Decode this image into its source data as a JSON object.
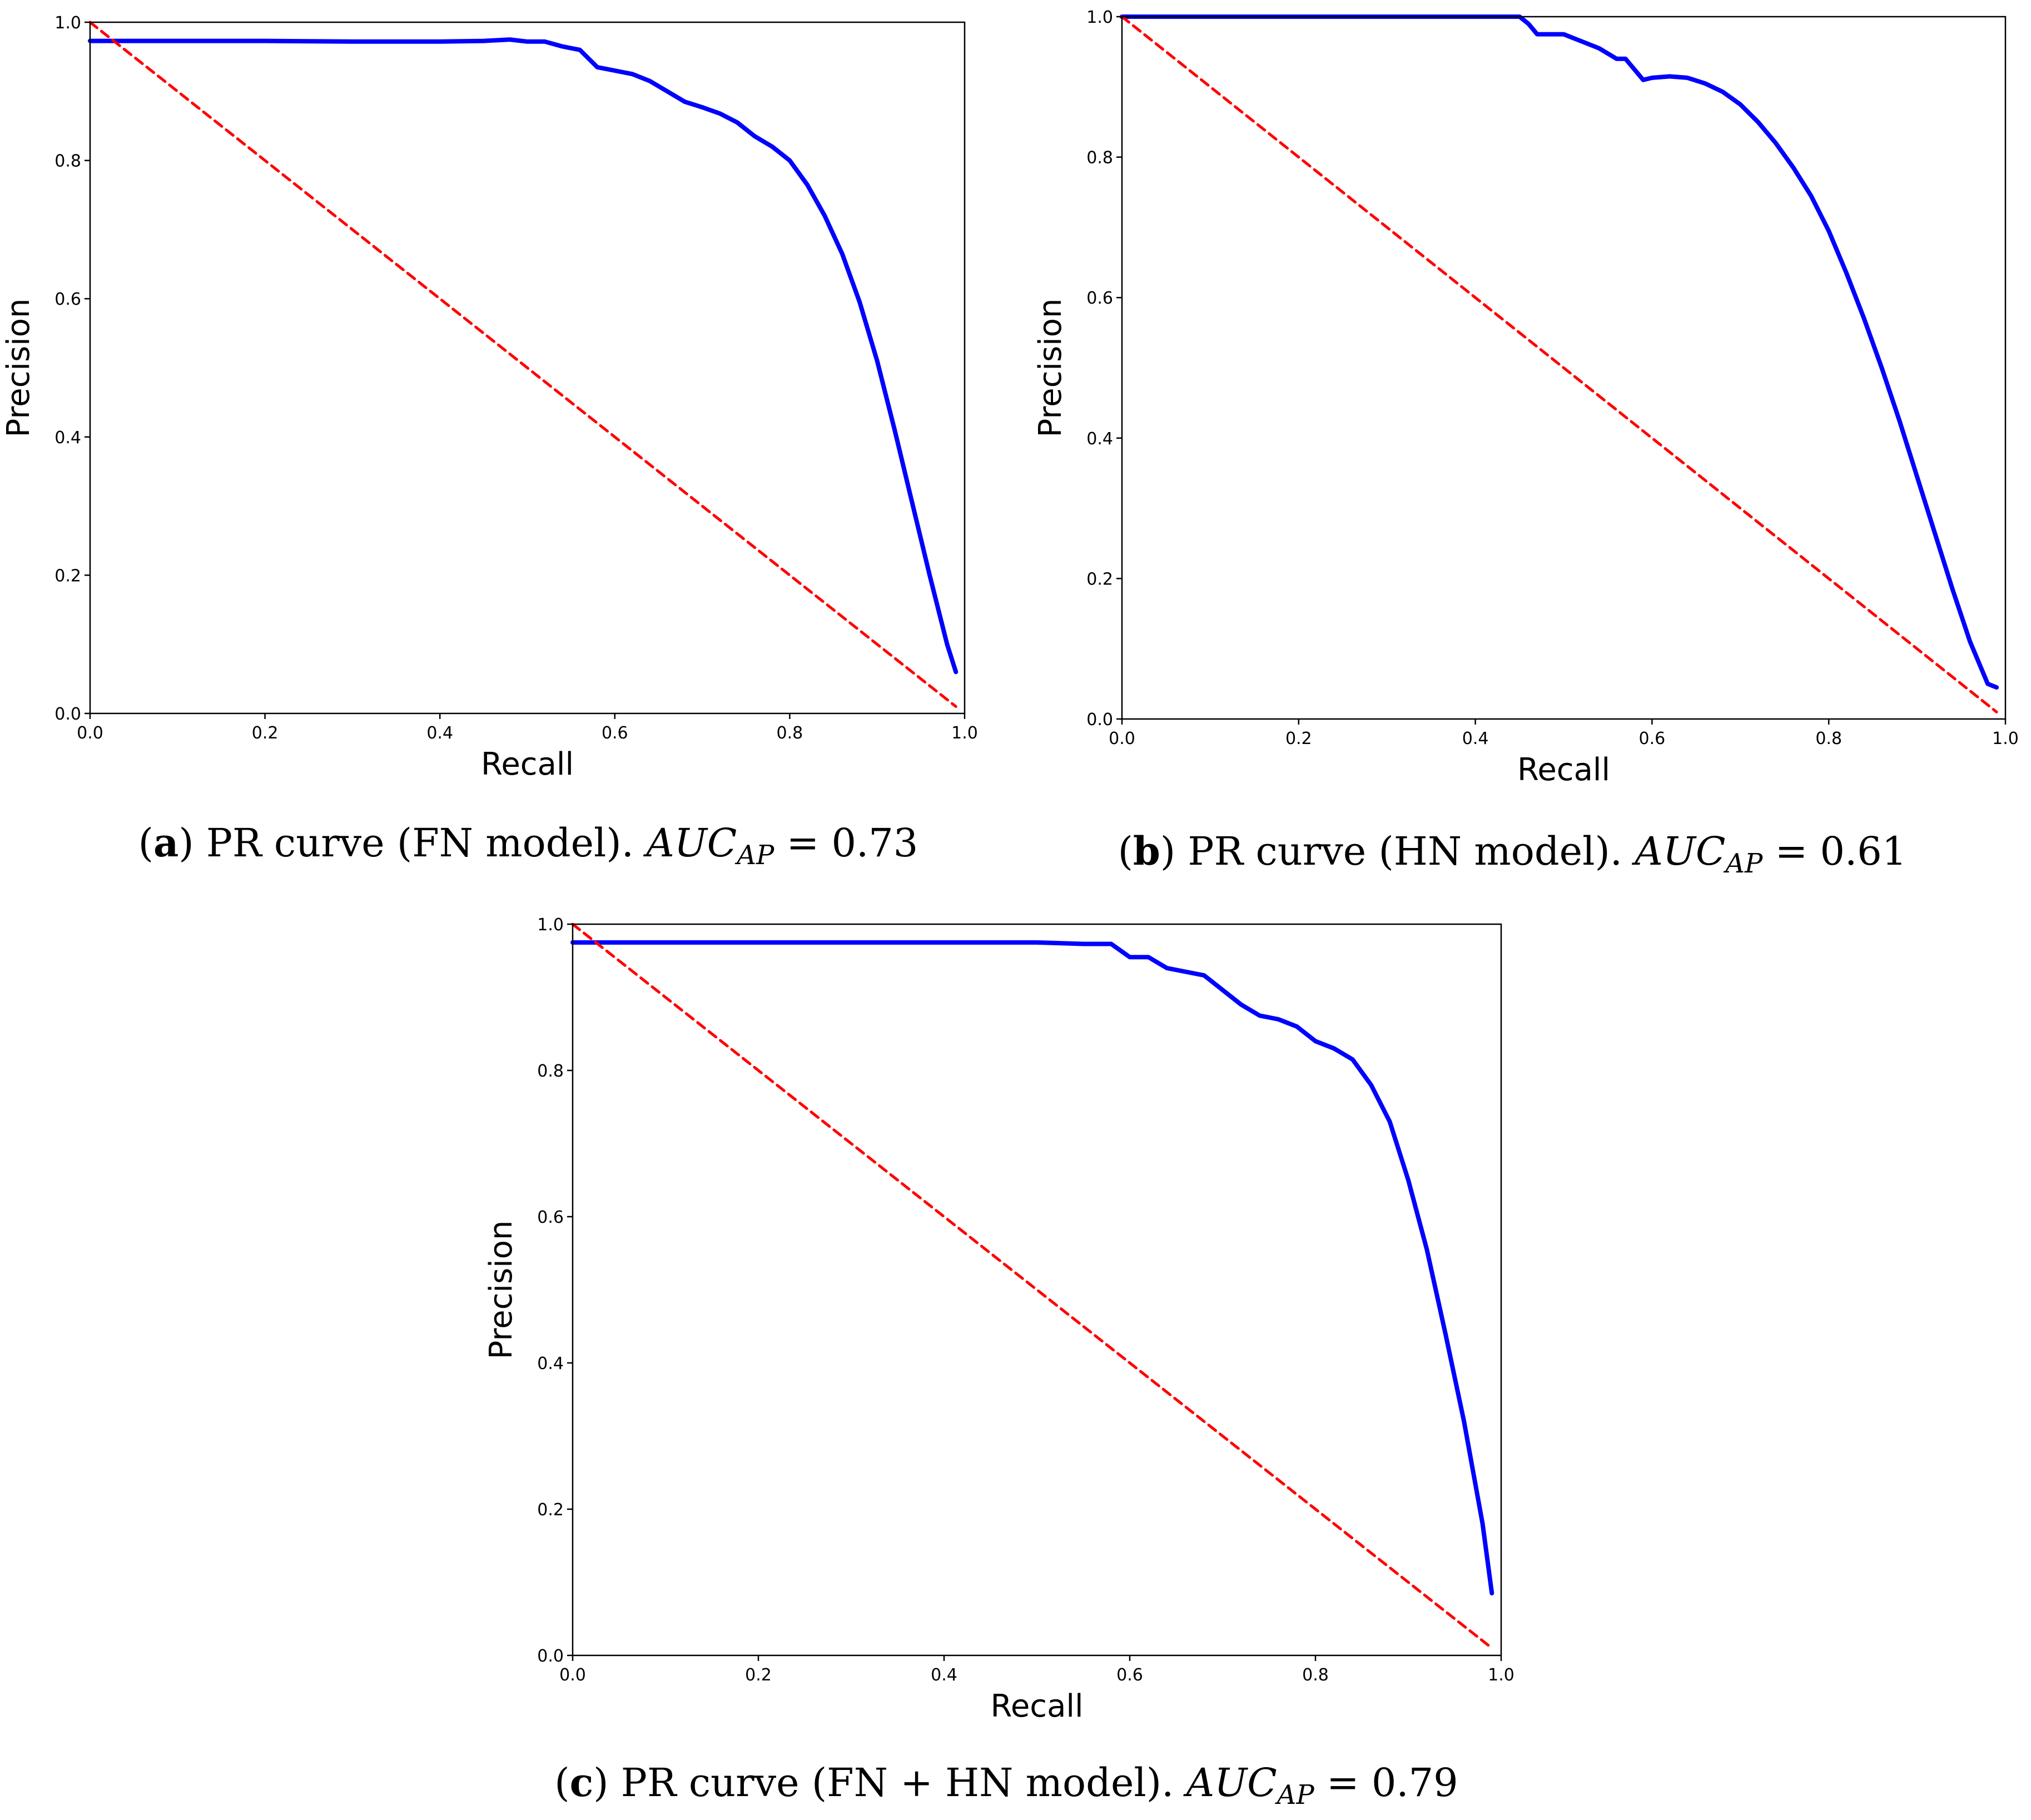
{
  "chart_data": [
    {
      "id": "a",
      "type": "line",
      "xlabel": "Recall",
      "ylabel": "Precision",
      "xlim": [
        0,
        1
      ],
      "ylim": [
        0,
        1
      ],
      "ticks": [
        "0.0",
        "0.2",
        "0.4",
        "0.6",
        "0.8",
        "1.0"
      ],
      "caption": {
        "label": "a",
        "text": "PR curve (FN model).",
        "metric": "AUC",
        "sub": "AP",
        "value": "0.73"
      },
      "series": [
        {
          "name": "pr-curve",
          "color": "#0000ff",
          "style": "solid",
          "x": [
            0,
            0.1,
            0.2,
            0.3,
            0.4,
            0.45,
            0.48,
            0.5,
            0.52,
            0.54,
            0.56,
            0.58,
            0.6,
            0.62,
            0.64,
            0.66,
            0.68,
            0.7,
            0.72,
            0.74,
            0.76,
            0.78,
            0.8,
            0.82,
            0.84,
            0.86,
            0.88,
            0.9,
            0.92,
            0.94,
            0.96,
            0.98,
            0.99
          ],
          "y": [
            0.973,
            0.973,
            0.973,
            0.972,
            0.972,
            0.973,
            0.975,
            0.972,
            0.972,
            0.965,
            0.96,
            0.935,
            0.93,
            0.925,
            0.915,
            0.9,
            0.885,
            0.877,
            0.868,
            0.855,
            0.835,
            0.82,
            0.8,
            0.765,
            0.72,
            0.665,
            0.595,
            0.51,
            0.41,
            0.305,
            0.2,
            0.1,
            0.06
          ]
        },
        {
          "name": "baseline",
          "color": "#ff0000",
          "style": "dashed",
          "x": [
            0,
            0.99
          ],
          "y": [
            1.0,
            0.01
          ]
        }
      ]
    },
    {
      "id": "b",
      "type": "line",
      "xlabel": "Recall",
      "ylabel": "Precision",
      "xlim": [
        0,
        1
      ],
      "ylim": [
        0,
        1
      ],
      "ticks": [
        "0.0",
        "0.2",
        "0.4",
        "0.6",
        "0.8",
        "1.0"
      ],
      "caption": {
        "label": "b",
        "text": "PR curve (HN model).",
        "metric": "AUC",
        "sub": "AP",
        "value": "0.61"
      },
      "series": [
        {
          "name": "pr-curve",
          "color": "#0000ff",
          "style": "solid",
          "x": [
            0,
            0.1,
            0.2,
            0.3,
            0.4,
            0.44,
            0.45,
            0.46,
            0.47,
            0.5,
            0.52,
            0.54,
            0.56,
            0.57,
            0.58,
            0.59,
            0.6,
            0.62,
            0.64,
            0.66,
            0.68,
            0.7,
            0.72,
            0.74,
            0.76,
            0.78,
            0.8,
            0.82,
            0.84,
            0.86,
            0.88,
            0.9,
            0.92,
            0.94,
            0.96,
            0.98,
            0.99
          ],
          "y": [
            1.0,
            1.0,
            1.0,
            1.0,
            1.0,
            1.0,
            1.0,
            0.99,
            0.975,
            0.975,
            0.965,
            0.955,
            0.94,
            0.94,
            0.925,
            0.91,
            0.913,
            0.915,
            0.913,
            0.905,
            0.893,
            0.875,
            0.85,
            0.82,
            0.785,
            0.745,
            0.695,
            0.635,
            0.57,
            0.5,
            0.425,
            0.345,
            0.265,
            0.185,
            0.11,
            0.05,
            0.045
          ]
        },
        {
          "name": "baseline",
          "color": "#ff0000",
          "style": "dashed",
          "x": [
            0,
            0.99
          ],
          "y": [
            1.0,
            0.01
          ]
        }
      ]
    },
    {
      "id": "c",
      "type": "line",
      "xlabel": "Recall",
      "ylabel": "Precision",
      "xlim": [
        0,
        1
      ],
      "ylim": [
        0,
        1
      ],
      "ticks": [
        "0.0",
        "0.2",
        "0.4",
        "0.6",
        "0.8",
        "1.0"
      ],
      "caption": {
        "label": "c",
        "text": "PR curve (FN + HN model).",
        "metric": "AUC",
        "sub": "AP",
        "value": "0.79"
      },
      "series": [
        {
          "name": "pr-curve",
          "color": "#0000ff",
          "style": "solid",
          "x": [
            0,
            0.1,
            0.2,
            0.3,
            0.4,
            0.5,
            0.55,
            0.58,
            0.6,
            0.62,
            0.64,
            0.66,
            0.68,
            0.7,
            0.72,
            0.74,
            0.76,
            0.78,
            0.8,
            0.82,
            0.84,
            0.86,
            0.88,
            0.9,
            0.92,
            0.94,
            0.96,
            0.98,
            0.99
          ],
          "y": [
            0.975,
            0.975,
            0.975,
            0.975,
            0.975,
            0.975,
            0.973,
            0.973,
            0.955,
            0.955,
            0.94,
            0.935,
            0.93,
            0.91,
            0.89,
            0.875,
            0.87,
            0.86,
            0.84,
            0.83,
            0.815,
            0.78,
            0.73,
            0.65,
            0.555,
            0.44,
            0.32,
            0.18,
            0.085
          ]
        },
        {
          "name": "baseline",
          "color": "#ff0000",
          "style": "dashed",
          "x": [
            0,
            0.99
          ],
          "y": [
            1.0,
            0.01
          ]
        }
      ]
    }
  ]
}
